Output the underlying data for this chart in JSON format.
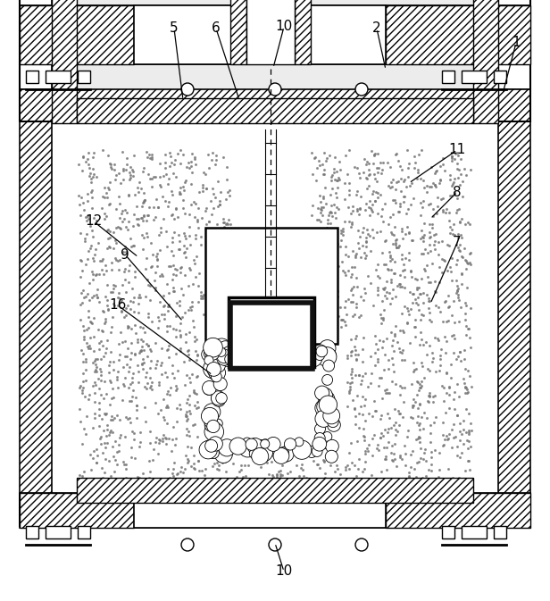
{
  "fig_width": 6.16,
  "fig_height": 6.73,
  "bg_color": "#ffffff"
}
